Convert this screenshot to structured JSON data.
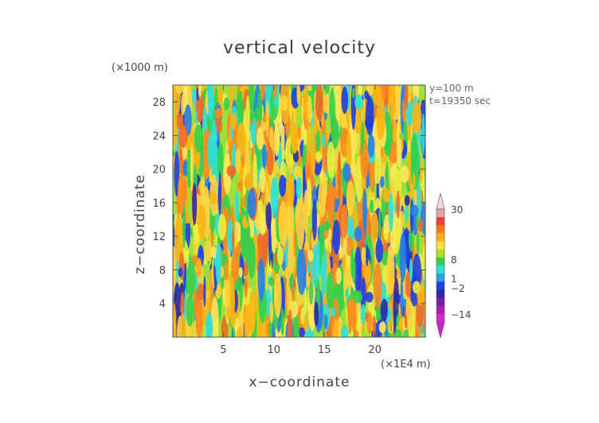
{
  "chart_data": {
    "type": "heatmap",
    "title": "vertical velocity",
    "xlabel": "x−coordinate",
    "ylabel": "z−coordinate",
    "x_multiplier_label": "(×1E4 m)",
    "y_multiplier_label": "(×1000 m)",
    "annotations": [
      "y=100 m",
      "t=19350 sec"
    ],
    "x_range": [
      0,
      25
    ],
    "y_range": [
      0,
      30
    ],
    "x_ticks": [
      5,
      10,
      15,
      20
    ],
    "y_ticks": [
      4,
      8,
      12,
      16,
      20,
      24,
      28
    ],
    "field_description": "vertically elongated streaks of updraft (orange/red) and downdraft (blue) over a green/yellow background",
    "colorbar": {
      "labels": [
        "30",
        "8",
        "1",
        "−2",
        "−14"
      ],
      "label_values": [
        30,
        8,
        1,
        -2,
        -14
      ],
      "colors": [
        "#e7a6a6",
        "#ee3c3c",
        "#ff7a14",
        "#ffb414",
        "#ffe03c",
        "#aee02a",
        "#33d04c",
        "#2ee0d8",
        "#2aa0e8",
        "#1e40e0",
        "#2a2aa8",
        "#7a1ea8",
        "#b01eb0",
        "#d52ad2"
      ]
    }
  }
}
